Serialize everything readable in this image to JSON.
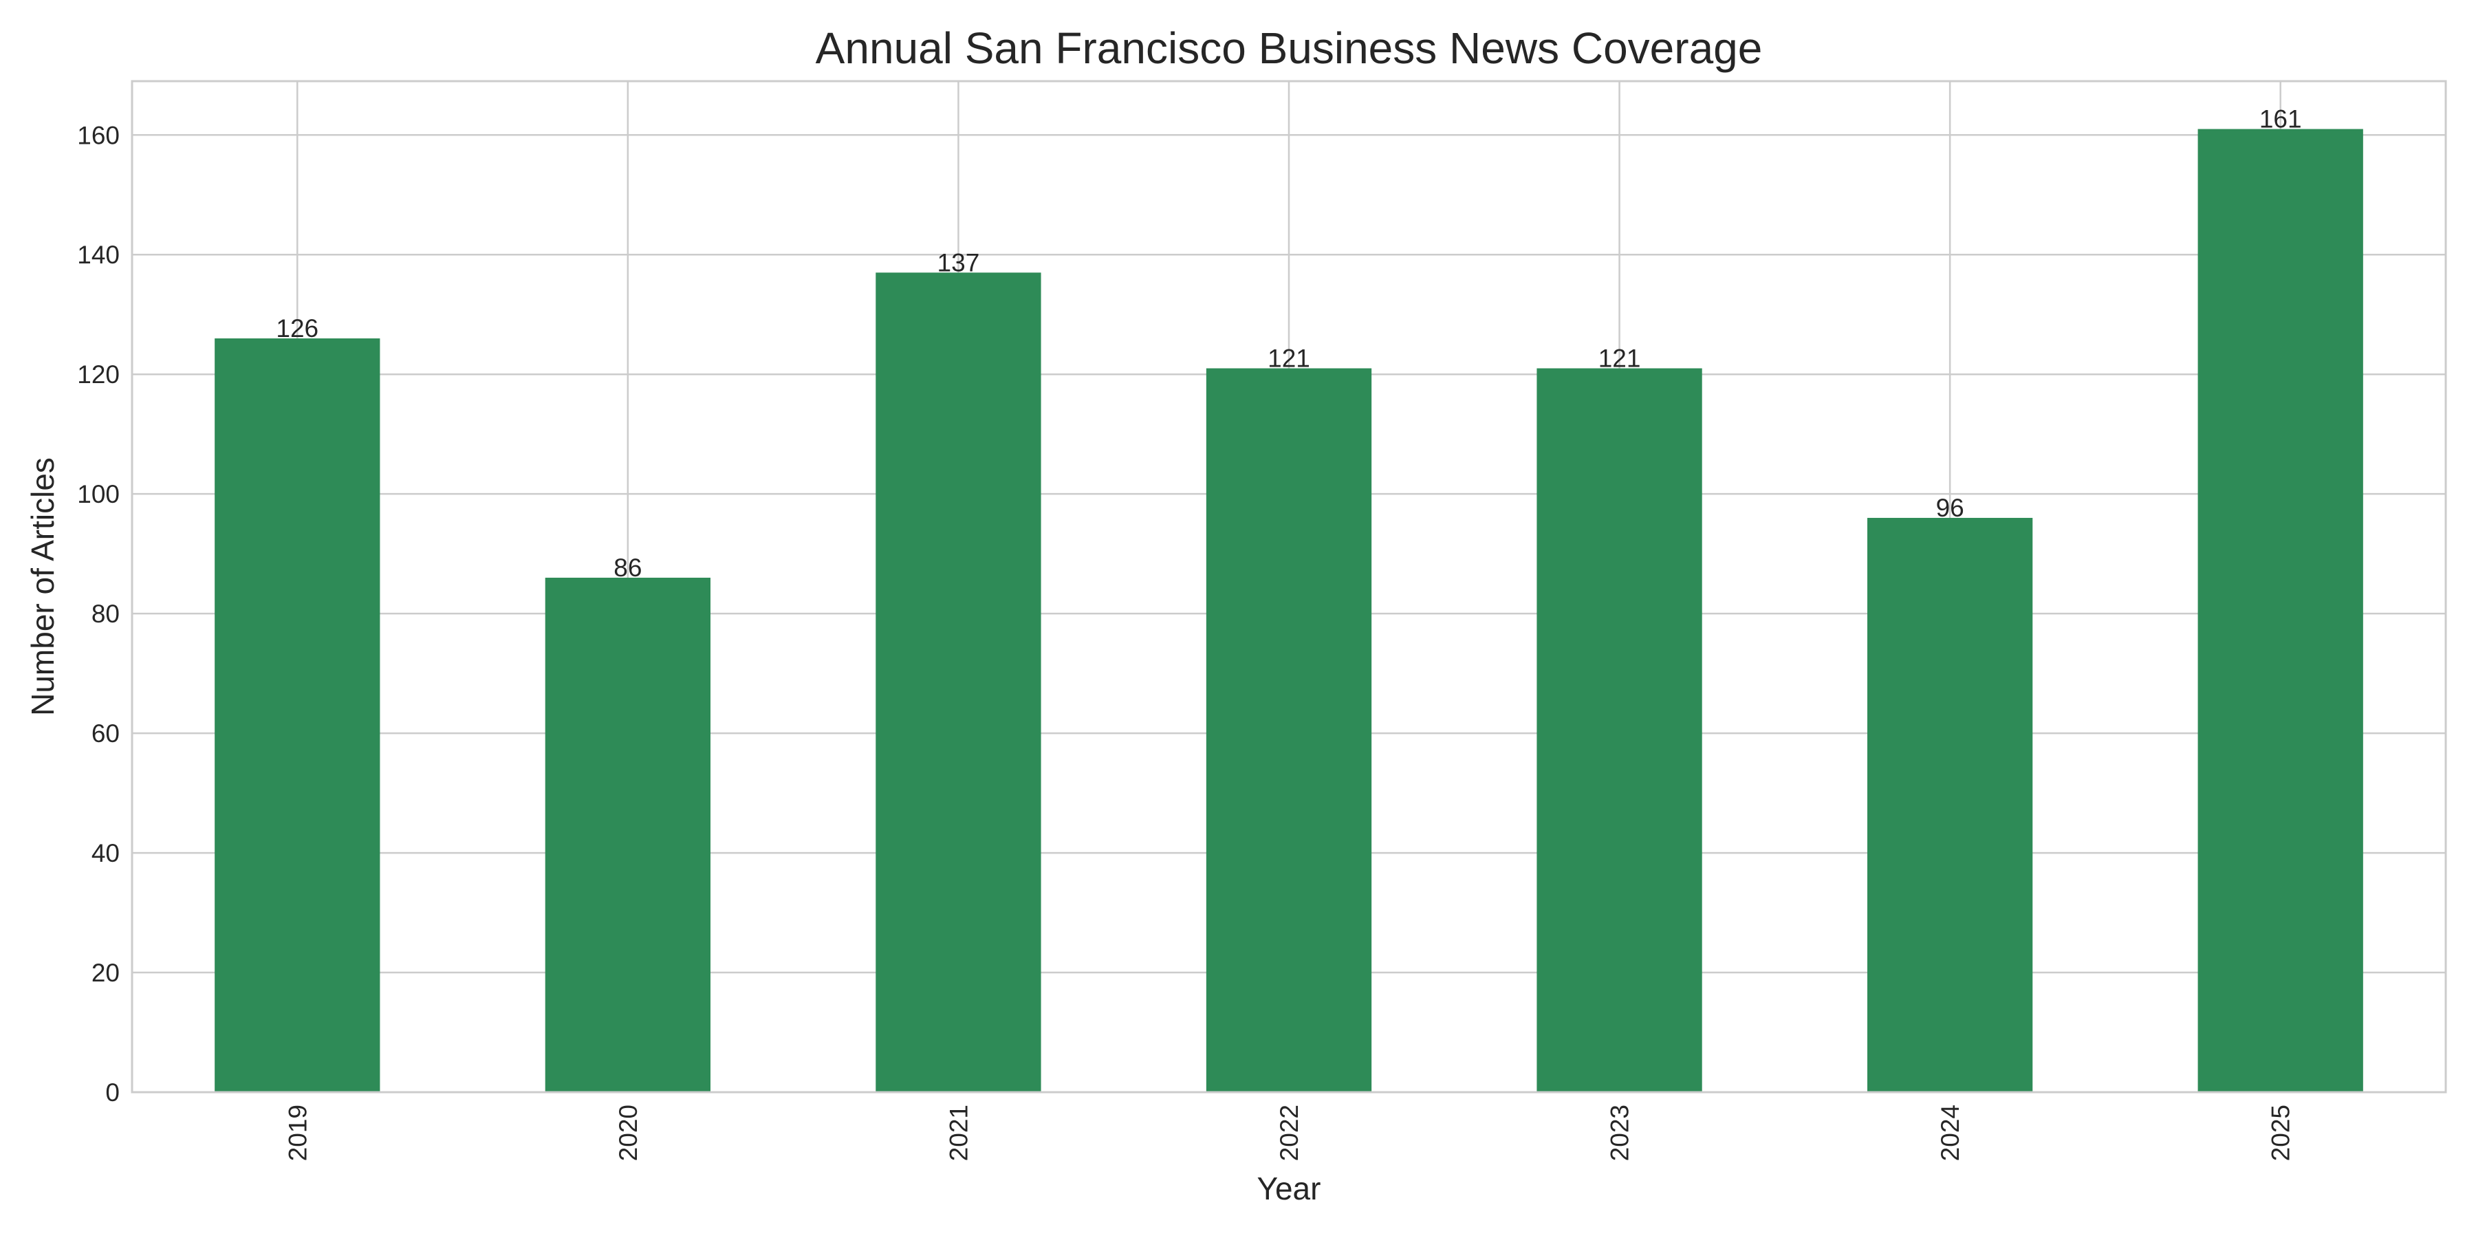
{
  "chart_data": {
    "type": "bar",
    "title": "Annual San Francisco Business News Coverage",
    "xlabel": "Year",
    "ylabel": "Number of Articles",
    "categories": [
      "2019",
      "2020",
      "2021",
      "2022",
      "2023",
      "2024",
      "2025"
    ],
    "values": [
      126,
      86,
      137,
      121,
      121,
      96,
      161
    ],
    "value_labels": [
      "126",
      "86",
      "137",
      "121",
      "121",
      "96",
      "161"
    ],
    "ylim": [
      0,
      169
    ],
    "yticks": [
      0,
      20,
      40,
      60,
      80,
      100,
      120,
      140,
      160
    ],
    "ytick_labels": [
      "0",
      "20",
      "40",
      "60",
      "80",
      "100",
      "120",
      "140",
      "160"
    ],
    "grid": true,
    "bar_color": "#2e8b57",
    "grid_color": "#cccccc",
    "xtick_rotation": "vertical",
    "legend": "none"
  }
}
